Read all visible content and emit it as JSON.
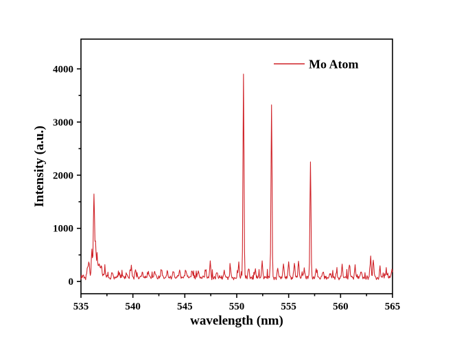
{
  "window": {
    "background": "#ffffff"
  },
  "chart_data": {
    "type": "line",
    "title": "",
    "xlabel": "wavelength (nm)",
    "ylabel": "Intensity (a.u.)",
    "xlim": [
      535,
      565
    ],
    "ylim": [
      -230,
      4560
    ],
    "x_major_ticks": [
      535,
      540,
      545,
      550,
      555,
      560,
      565
    ],
    "x_minor_ticks": [
      537.5,
      542.5,
      547.5,
      552.5,
      557.5,
      562.5
    ],
    "y_major_ticks": [
      0,
      1000,
      2000,
      3000,
      4000
    ],
    "y_minor_ticks": [
      500,
      1500,
      2500,
      3500
    ],
    "grid": false,
    "axis_color": "#000000",
    "legend": {
      "position": "inside-top-right",
      "entries": [
        {
          "label": "Mo Atom",
          "color": "#cf2127"
        }
      ]
    },
    "series": [
      {
        "name": "Mo Atom",
        "color": "#cf2127",
        "sample_step_nm": 0.05,
        "baseline": {
          "offset": 25,
          "noise_amplitudes": [
            55,
            45
          ],
          "spike_probability": 0.1,
          "spike_amplitude": 150,
          "mean": 80,
          "seed": 42
        },
        "peaks_format": [
          "wavelength_nm",
          "intensity",
          "width_nm"
        ],
        "peaks": [
          [
            535.65,
            280,
            0.1
          ],
          [
            535.78,
            310,
            0.08
          ],
          [
            536.05,
            600,
            0.08
          ],
          [
            536.25,
            1650,
            0.08
          ],
          [
            536.4,
            700,
            0.07
          ],
          [
            536.55,
            500,
            0.08
          ],
          [
            536.75,
            360,
            0.1
          ],
          [
            536.95,
            280,
            0.1
          ],
          [
            537.3,
            200,
            0.12
          ],
          [
            538.0,
            170,
            0.1
          ],
          [
            538.7,
            160,
            0.1
          ],
          [
            539.4,
            180,
            0.08
          ],
          [
            539.85,
            310,
            0.07
          ],
          [
            540.25,
            220,
            0.08
          ],
          [
            540.9,
            160,
            0.1
          ],
          [
            541.5,
            180,
            0.08
          ],
          [
            542.1,
            200,
            0.08
          ],
          [
            542.75,
            240,
            0.08
          ],
          [
            543.3,
            200,
            0.08
          ],
          [
            543.9,
            180,
            0.1
          ],
          [
            544.5,
            210,
            0.08
          ],
          [
            545.1,
            230,
            0.08
          ],
          [
            545.7,
            210,
            0.08
          ],
          [
            546.3,
            190,
            0.1
          ],
          [
            547.0,
            230,
            0.08
          ],
          [
            547.45,
            380,
            0.07
          ],
          [
            548.1,
            200,
            0.08
          ],
          [
            548.8,
            190,
            0.08
          ],
          [
            549.4,
            220,
            0.08
          ],
          [
            550.2,
            380,
            0.07
          ],
          [
            550.65,
            3900,
            0.07
          ],
          [
            551.15,
            260,
            0.08
          ],
          [
            551.8,
            220,
            0.08
          ],
          [
            552.45,
            370,
            0.07
          ],
          [
            553.35,
            3340,
            0.07
          ],
          [
            553.95,
            260,
            0.08
          ],
          [
            554.5,
            330,
            0.08
          ],
          [
            555.0,
            420,
            0.07
          ],
          [
            555.55,
            330,
            0.08
          ],
          [
            555.95,
            400,
            0.07
          ],
          [
            556.5,
            260,
            0.08
          ],
          [
            557.1,
            2250,
            0.07
          ],
          [
            557.65,
            240,
            0.08
          ],
          [
            558.3,
            180,
            0.08
          ],
          [
            559.0,
            170,
            0.08
          ],
          [
            559.6,
            190,
            0.08
          ],
          [
            560.15,
            320,
            0.07
          ],
          [
            560.85,
            360,
            0.07
          ],
          [
            561.4,
            240,
            0.08
          ],
          [
            562.0,
            200,
            0.08
          ],
          [
            562.9,
            510,
            0.07
          ],
          [
            563.15,
            410,
            0.07
          ],
          [
            563.8,
            190,
            0.08
          ],
          [
            564.4,
            200,
            0.08
          ],
          [
            564.95,
            240,
            0.08
          ]
        ]
      }
    ]
  }
}
